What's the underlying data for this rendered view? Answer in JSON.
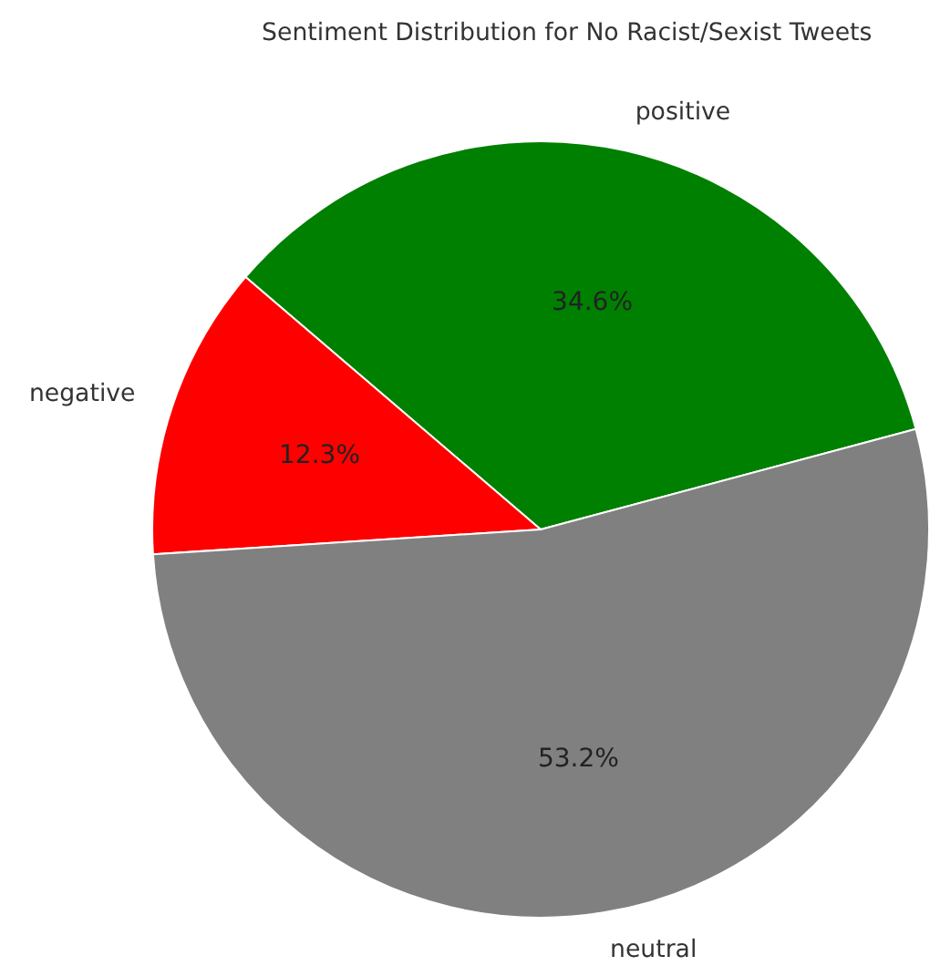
{
  "chart_data": {
    "type": "pie",
    "title": "Sentiment Distribution for No Racist/Sexist Tweets",
    "categories": [
      "positive",
      "negative",
      "neutral"
    ],
    "values": [
      34.6,
      12.3,
      53.2
    ],
    "colors": [
      "#008000",
      "#ff0000",
      "#808080"
    ],
    "value_labels": [
      "34.6%",
      "12.3%",
      "53.2%"
    ]
  }
}
